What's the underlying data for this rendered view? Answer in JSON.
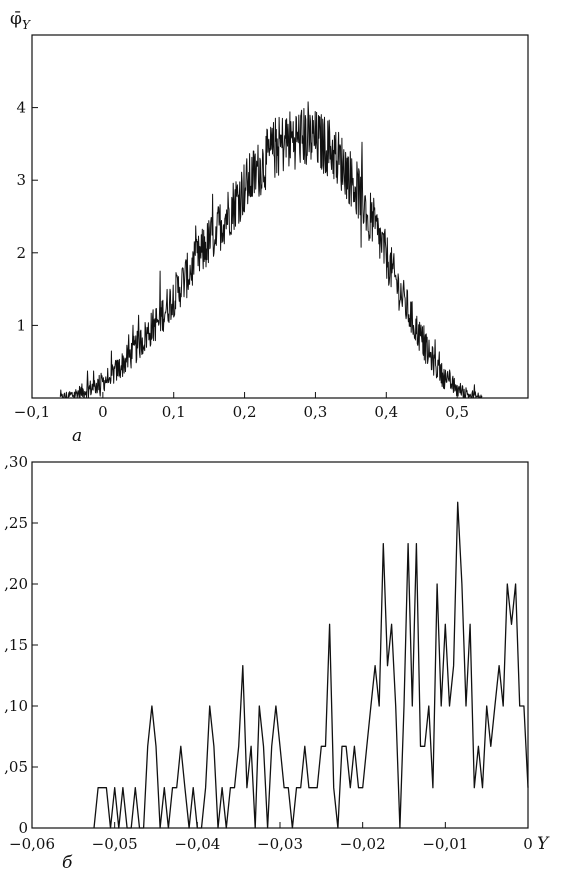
{
  "chart_data": [
    {
      "type": "line",
      "panel_label": "а",
      "ylabel": "φ̄",
      "ylabel_subscript": "Y",
      "xlim": [
        -0.1,
        0.6
      ],
      "ylim": [
        0,
        5
      ],
      "x_ticks": [
        -0.1,
        0,
        0.1,
        0.2,
        0.3,
        0.4,
        0.5
      ],
      "x_tick_labels": [
        "−0,1",
        "0",
        "0,1",
        "0,2",
        "0,3",
        "0,4",
        "0,5"
      ],
      "y_ticks": [
        1,
        2,
        3,
        4
      ],
      "y_tick_labels": [
        "1",
        "2",
        "3",
        "4"
      ],
      "grid": false,
      "series": [
        {
          "style": "noisy",
          "x": [
            -0.06,
            -0.04,
            -0.02,
            0.0,
            0.02,
            0.04,
            0.06,
            0.08,
            0.1,
            0.12,
            0.14,
            0.16,
            0.18,
            0.2,
            0.22,
            0.24,
            0.26,
            0.28,
            0.3,
            0.32,
            0.34,
            0.36,
            0.38,
            0.4,
            0.42,
            0.44,
            0.46,
            0.48,
            0.5,
            0.52,
            0.535
          ],
          "values": [
            0.0,
            0.05,
            0.12,
            0.22,
            0.38,
            0.6,
            0.85,
            1.1,
            1.4,
            1.7,
            2.0,
            2.3,
            2.6,
            2.9,
            3.15,
            3.4,
            3.55,
            3.6,
            3.55,
            3.45,
            3.2,
            2.85,
            2.45,
            1.95,
            1.45,
            1.0,
            0.6,
            0.3,
            0.12,
            0.03,
            0.0
          ]
        }
      ]
    },
    {
      "type": "line",
      "panel_label": "б",
      "xlabel": "Y",
      "xlim": [
        -0.06,
        0
      ],
      "ylim": [
        0,
        0.3
      ],
      "x_ticks": [
        -0.06,
        -0.05,
        -0.04,
        -0.03,
        -0.02,
        -0.01,
        0
      ],
      "x_tick_labels": [
        "−0,06",
        "−0,05",
        "−0,04",
        "−0,03",
        "−0,02",
        "−0,01",
        "0"
      ],
      "y_ticks": [
        0,
        0.05,
        0.1,
        0.15,
        0.2,
        0.25,
        0.3
      ],
      "y_tick_labels": [
        "0",
        ",05",
        ",10",
        ",15",
        ",20",
        ",25",
        ",30"
      ],
      "grid": false,
      "series": [
        {
          "x": [
            -0.0525,
            -0.052,
            -0.051,
            -0.0505,
            -0.05,
            -0.0495,
            -0.049,
            -0.0485,
            -0.048,
            -0.0475,
            -0.047,
            -0.0465,
            -0.046,
            -0.0455,
            -0.045,
            -0.0445,
            -0.044,
            -0.0435,
            -0.043,
            -0.0425,
            -0.042,
            -0.0415,
            -0.041,
            -0.0405,
            -0.04,
            -0.0395,
            -0.039,
            -0.0385,
            -0.038,
            -0.0375,
            -0.037,
            -0.0365,
            -0.036,
            -0.0355,
            -0.035,
            -0.0345,
            -0.034,
            -0.0335,
            -0.033,
            -0.0325,
            -0.032,
            -0.0315,
            -0.031,
            -0.0305,
            -0.03,
            -0.0295,
            -0.029,
            -0.0285,
            -0.028,
            -0.0275,
            -0.027,
            -0.0265,
            -0.026,
            -0.0255,
            -0.025,
            -0.0245,
            -0.024,
            -0.0235,
            -0.023,
            -0.0225,
            -0.022,
            -0.0215,
            -0.021,
            -0.0205,
            -0.02,
            -0.0195,
            -0.019,
            -0.0185,
            -0.018,
            -0.0175,
            -0.017,
            -0.0165,
            -0.016,
            -0.0155,
            -0.015,
            -0.0145,
            -0.014,
            -0.0135,
            -0.013,
            -0.0125,
            -0.012,
            -0.0115,
            -0.011,
            -0.0105,
            -0.01,
            -0.0095,
            -0.009,
            -0.0085,
            -0.008,
            -0.0075,
            -0.007,
            -0.0065,
            -0.006,
            -0.0055,
            -0.005,
            -0.0045,
            -0.004,
            -0.0035,
            -0.003,
            -0.0025,
            -0.002,
            -0.0015,
            -0.001,
            -0.0005,
            0.0
          ],
          "values": [
            0.0,
            0.033,
            0.033,
            0.0,
            0.033,
            0.0,
            0.033,
            0.0,
            0.0,
            0.033,
            0.0,
            0.0,
            0.067,
            0.1,
            0.067,
            0.0,
            0.033,
            0.0,
            0.033,
            0.033,
            0.067,
            0.033,
            0.0,
            0.033,
            0.0,
            0.0,
            0.033,
            0.1,
            0.067,
            0.0,
            0.033,
            0.0,
            0.033,
            0.033,
            0.067,
            0.133,
            0.033,
            0.067,
            0.0,
            0.1,
            0.067,
            0.0,
            0.067,
            0.1,
            0.067,
            0.033,
            0.033,
            0.0,
            0.033,
            0.033,
            0.067,
            0.033,
            0.033,
            0.033,
            0.067,
            0.067,
            0.167,
            0.033,
            0.0,
            0.067,
            0.067,
            0.033,
            0.067,
            0.033,
            0.033,
            0.067,
            0.1,
            0.133,
            0.1,
            0.233,
            0.133,
            0.167,
            0.1,
            0.0,
            0.1,
            0.233,
            0.1,
            0.233,
            0.067,
            0.067,
            0.1,
            0.033,
            0.2,
            0.1,
            0.167,
            0.1,
            0.133,
            0.267,
            0.2,
            0.1,
            0.167,
            0.033,
            0.067,
            0.033,
            0.1,
            0.067,
            0.1,
            0.133,
            0.1,
            0.2,
            0.167,
            0.2,
            0.1,
            0.1,
            0.033
          ]
        }
      ]
    }
  ]
}
